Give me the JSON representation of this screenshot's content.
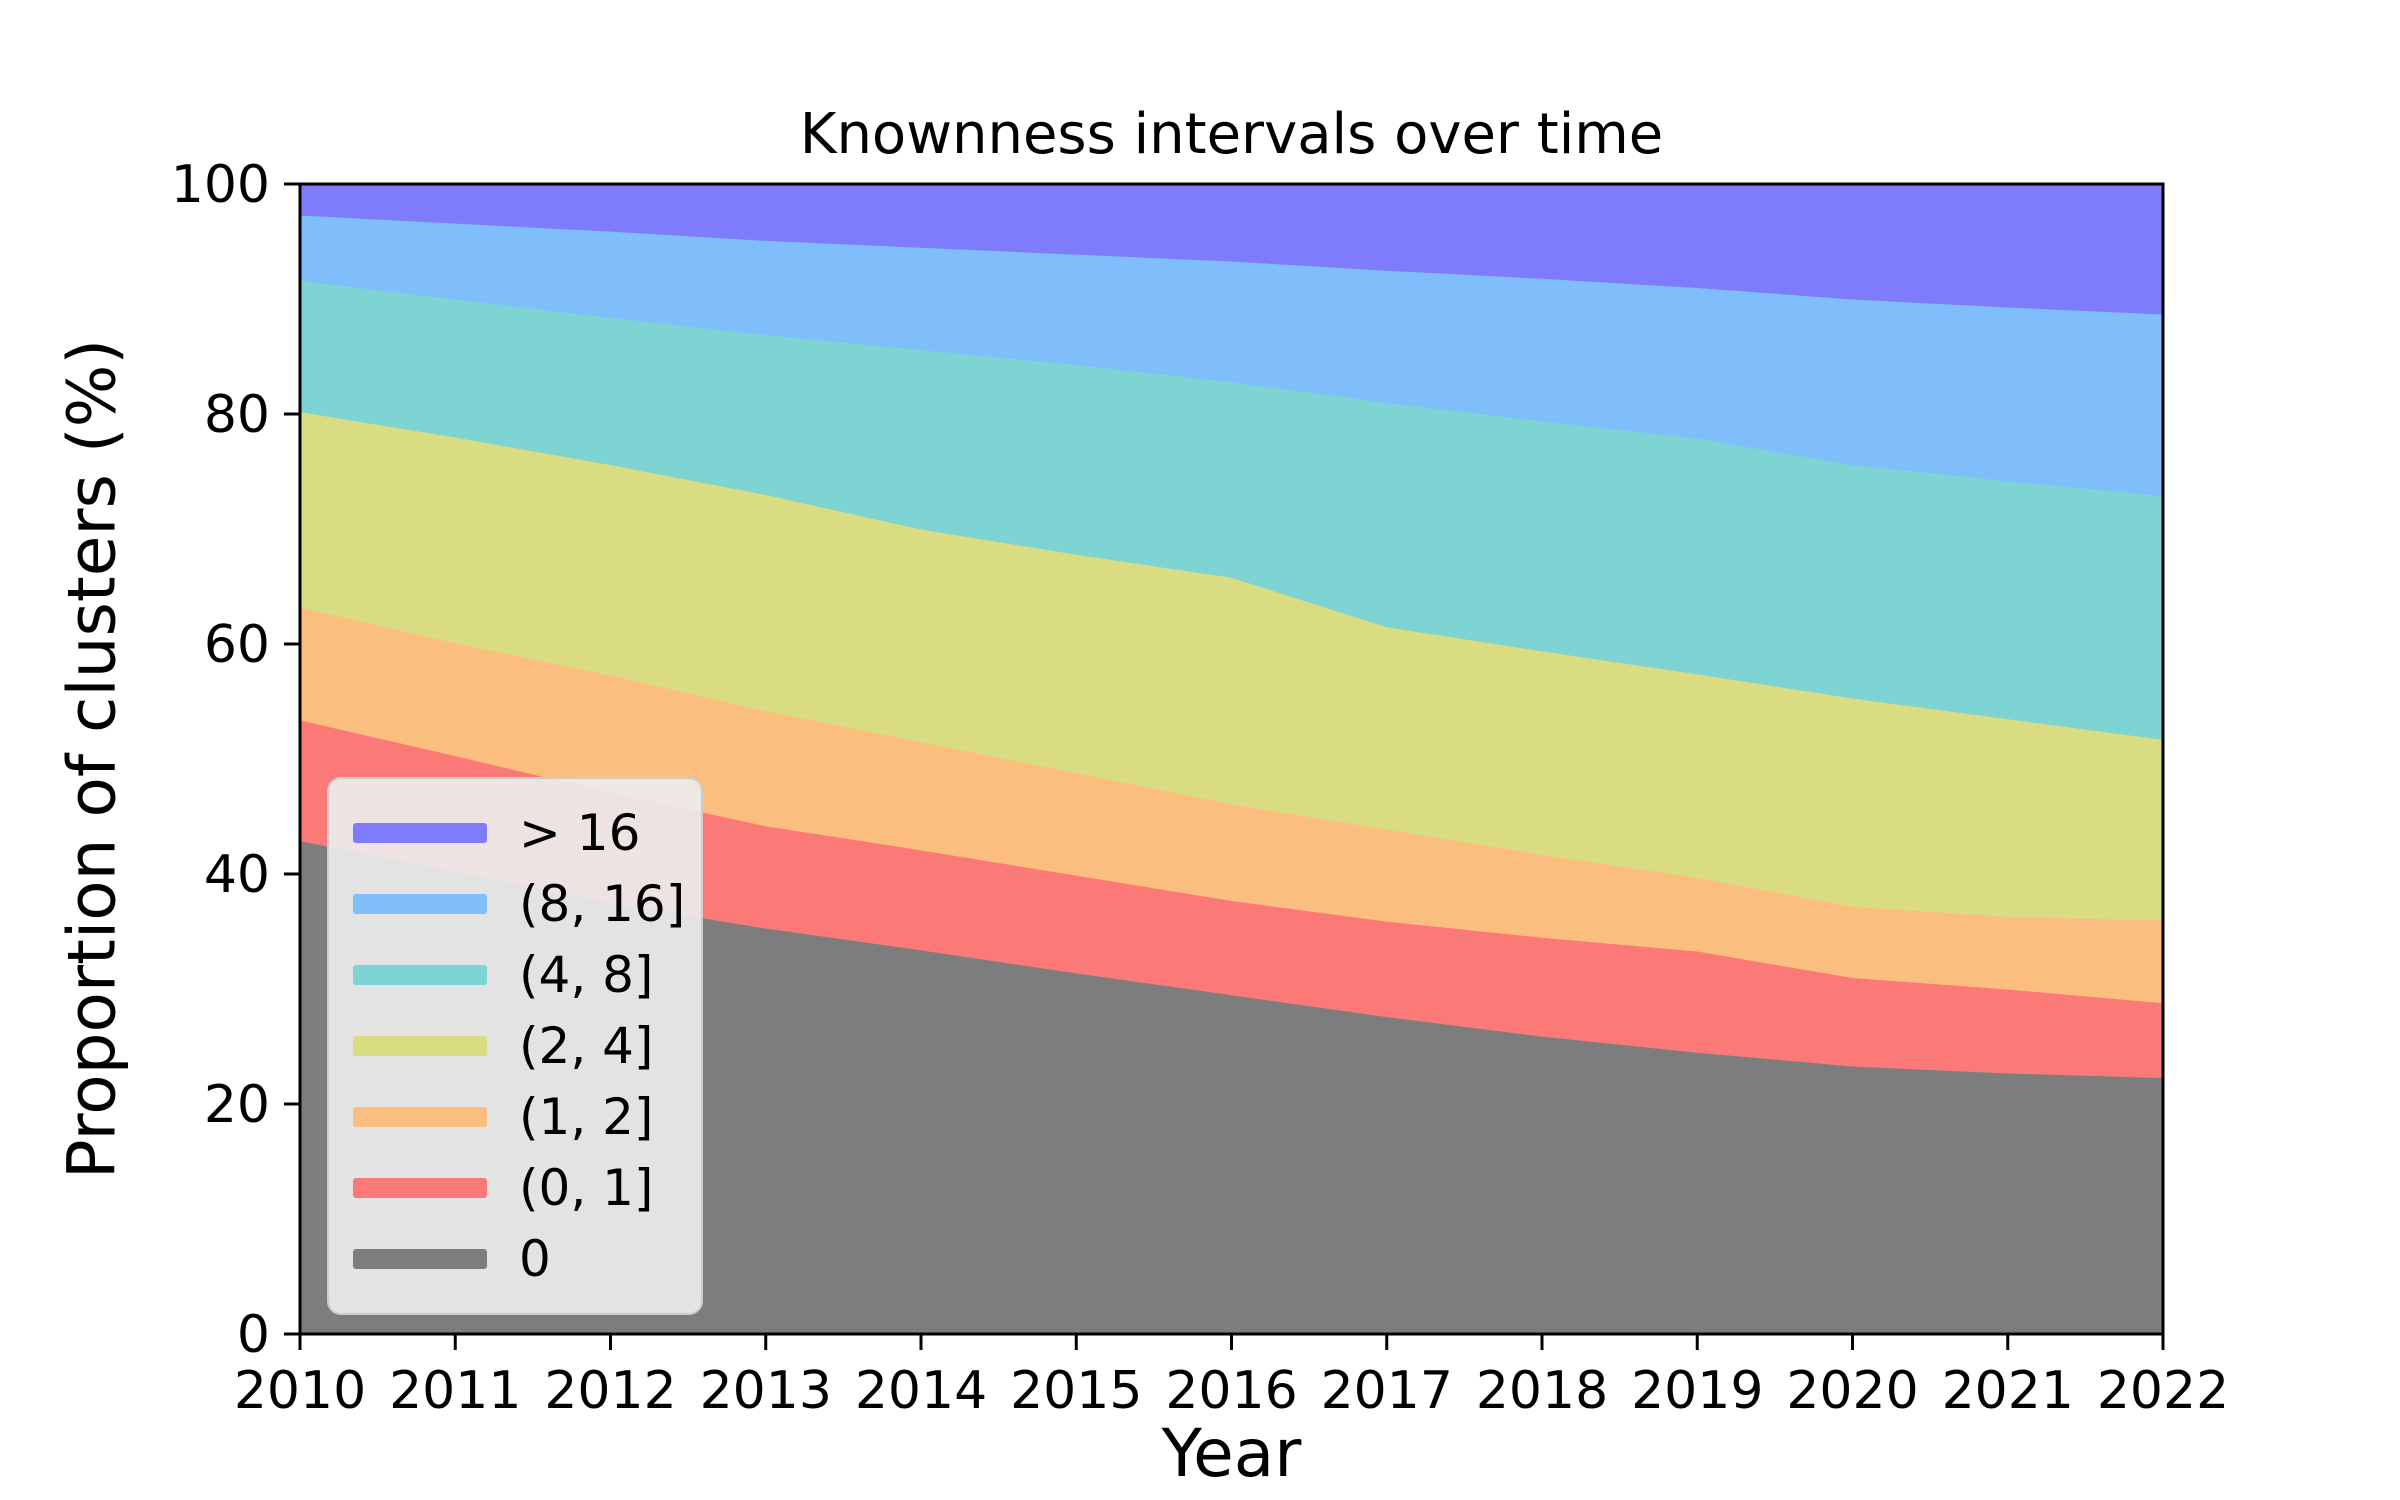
{
  "chart_data": {
    "type": "area",
    "stacked": true,
    "title": "Knownness intervals over time",
    "xlabel": "Year",
    "ylabel": "Proportion of clusters (%)",
    "x": [
      2010,
      2011,
      2012,
      2013,
      2014,
      2015,
      2016,
      2017,
      2018,
      2019,
      2020,
      2021,
      2022
    ],
    "xtick_labels": [
      "2010",
      "2011",
      "2012",
      "2013",
      "2014",
      "2015",
      "2016",
      "2017",
      "2018",
      "2019",
      "2020",
      "2021",
      "2022"
    ],
    "yticks": [
      0,
      20,
      40,
      60,
      80,
      100
    ],
    "ylim": [
      0,
      100
    ],
    "grid": false,
    "legend_position": "lower left inside plot",
    "series_bottom_to_top": [
      {
        "name": "0",
        "color": "#7D7D7D",
        "values": [
          42.9,
          40.2,
          37.5,
          35.3,
          33.4,
          31.4,
          29.5,
          27.6,
          25.9,
          24.5,
          23.3,
          22.7,
          22.3
        ]
      },
      {
        "name": "(0, 1]",
        "color": "#FB7A78",
        "values": [
          10.5,
          10.1,
          9.6,
          8.9,
          8.7,
          8.5,
          8.2,
          8.3,
          8.6,
          8.8,
          7.7,
          7.3,
          6.5
        ]
      },
      {
        "name": "(1, 2]",
        "color": "#FCBE7E",
        "values": [
          9.8,
          9.8,
          10.2,
          10.0,
          9.4,
          8.9,
          8.4,
          8.0,
          7.2,
          6.4,
          6.2,
          6.3,
          7.2
        ]
      },
      {
        "name": "(2, 4]",
        "color": "#DADC82",
        "values": [
          17.0,
          17.9,
          18.3,
          18.8,
          18.5,
          19.0,
          19.7,
          17.6,
          17.7,
          17.7,
          18.1,
          17.2,
          15.7
        ]
      },
      {
        "name": "(4, 8]",
        "color": "#7ED4D2",
        "values": [
          11.4,
          12.0,
          12.8,
          13.9,
          15.6,
          16.5,
          17.0,
          19.5,
          20.0,
          20.5,
          20.3,
          20.7,
          21.2
        ]
      },
      {
        "name": "(8, 16]",
        "color": "#7FBEFA",
        "values": [
          5.7,
          6.6,
          7.5,
          8.2,
          8.9,
          9.6,
          10.5,
          11.5,
          12.4,
          13.1,
          14.4,
          15.1,
          15.8
        ]
      },
      {
        "name": "> 16",
        "color": "#7E7CFB",
        "values": [
          2.7,
          3.4,
          4.1,
          4.9,
          5.5,
          6.1,
          6.7,
          7.5,
          8.2,
          9.0,
          10.0,
          10.7,
          11.3
        ]
      }
    ],
    "legend_entries_top_to_bottom": [
      {
        "label": "> 16",
        "color": "#7E7CFB"
      },
      {
        "label": "(8, 16]",
        "color": "#7FBEFA"
      },
      {
        "label": "(4, 8]",
        "color": "#7ED4D2"
      },
      {
        "label": "(2, 4]",
        "color": "#DADC82"
      },
      {
        "label": "(1, 2]",
        "color": "#FCBE7E"
      },
      {
        "label": "(0, 1]",
        "color": "#FB7A78"
      },
      {
        "label": "0",
        "color": "#7D7D7D"
      }
    ],
    "axis_color": "#000000"
  }
}
